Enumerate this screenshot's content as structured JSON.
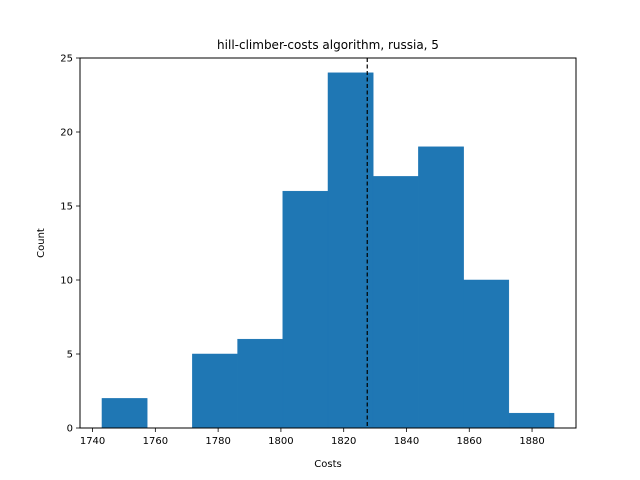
{
  "chart_data": {
    "type": "bar",
    "subtype": "histogram",
    "title": "hill-climber-costs algorithm, russia, 5",
    "xlabel": "Costs",
    "ylabel": "Count",
    "xlim": [
      1736,
      1894
    ],
    "ylim": [
      0,
      25
    ],
    "x_ticks": [
      1740,
      1760,
      1780,
      1800,
      1820,
      1840,
      1860,
      1880
    ],
    "y_ticks": [
      0,
      5,
      10,
      15,
      20,
      25
    ],
    "bin_edges": [
      1743.0,
      1757.4,
      1771.8,
      1786.2,
      1800.6,
      1815.0,
      1829.4,
      1843.8,
      1858.2,
      1872.6,
      1887.0
    ],
    "counts": [
      2,
      0,
      5,
      6,
      16,
      24,
      17,
      19,
      10,
      1
    ],
    "reference_line": {
      "x": 1827.5,
      "style": "dashed",
      "color": "#000000"
    },
    "bar_color": "#1f77b4",
    "grid": false,
    "legend": "none"
  }
}
